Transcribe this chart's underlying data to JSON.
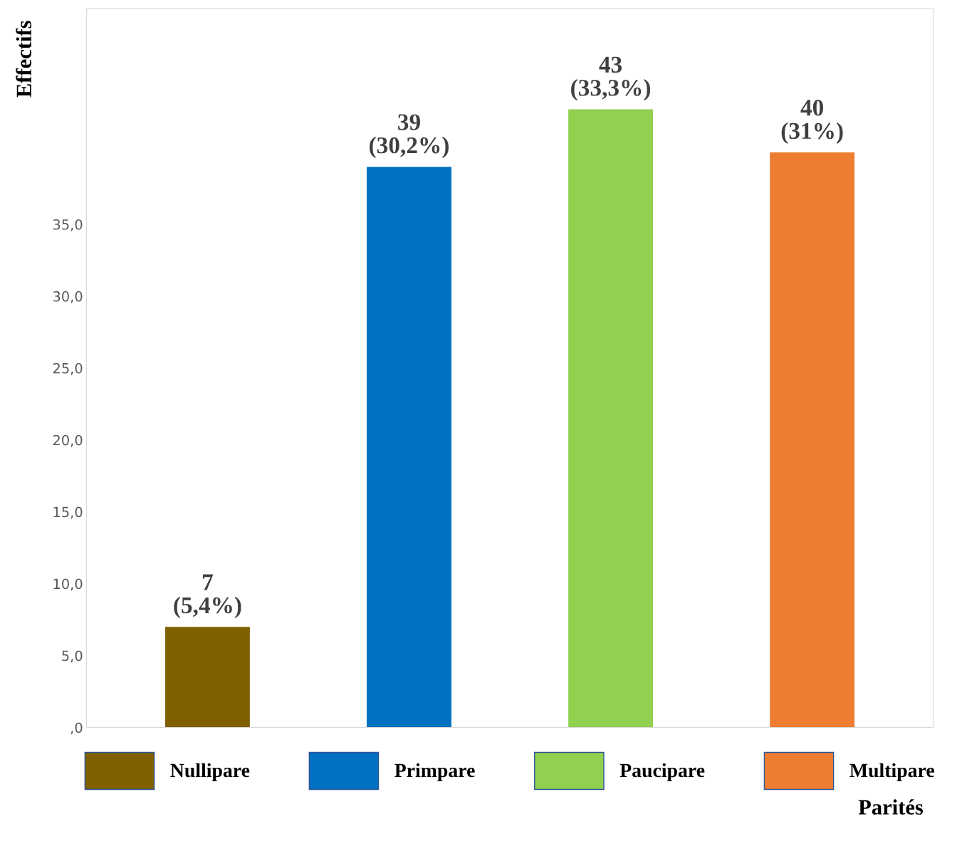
{
  "chart_data": {
    "type": "bar",
    "xlabel": "Parités",
    "ylabel": "Effectifs",
    "categories": [
      null,
      null,
      null,
      null
    ],
    "series": [
      {
        "name": "Nullipare",
        "color": "#7f6000",
        "values": [
          7,
          null,
          null,
          null
        ],
        "value_labels": [
          "7\n(5,4%)",
          null,
          null,
          null
        ]
      },
      {
        "name": "Primpare",
        "color": "#0070c0",
        "values": [
          null,
          39,
          null,
          null
        ],
        "value_labels": [
          null,
          "39\n(30,2%)",
          null,
          null
        ]
      },
      {
        "name": "Paucipare",
        "color": "#92d050",
        "values": [
          null,
          null,
          43,
          null
        ],
        "value_labels": [
          null,
          null,
          "43\n(33,3%)",
          null
        ]
      },
      {
        "name": "Multipare",
        "color": "#ed7d31",
        "values": [
          null,
          null,
          null,
          40
        ],
        "value_labels": [
          null,
          null,
          null,
          "40\n(31%)"
        ]
      }
    ],
    "ylim": [
      0,
      50
    ],
    "yticks": [
      {
        "value": 0,
        "label": ",0"
      },
      {
        "value": 5,
        "label": "5,0"
      },
      {
        "value": 10,
        "label": "10,0"
      },
      {
        "value": 15,
        "label": "15,0"
      },
      {
        "value": 20,
        "label": "20,0"
      },
      {
        "value": 25,
        "label": "25,0"
      },
      {
        "value": 30,
        "label": "30,0"
      },
      {
        "value": 35,
        "label": "35,0"
      }
    ],
    "tick_labels": "y",
    "grid": false,
    "legend": "bottom"
  }
}
